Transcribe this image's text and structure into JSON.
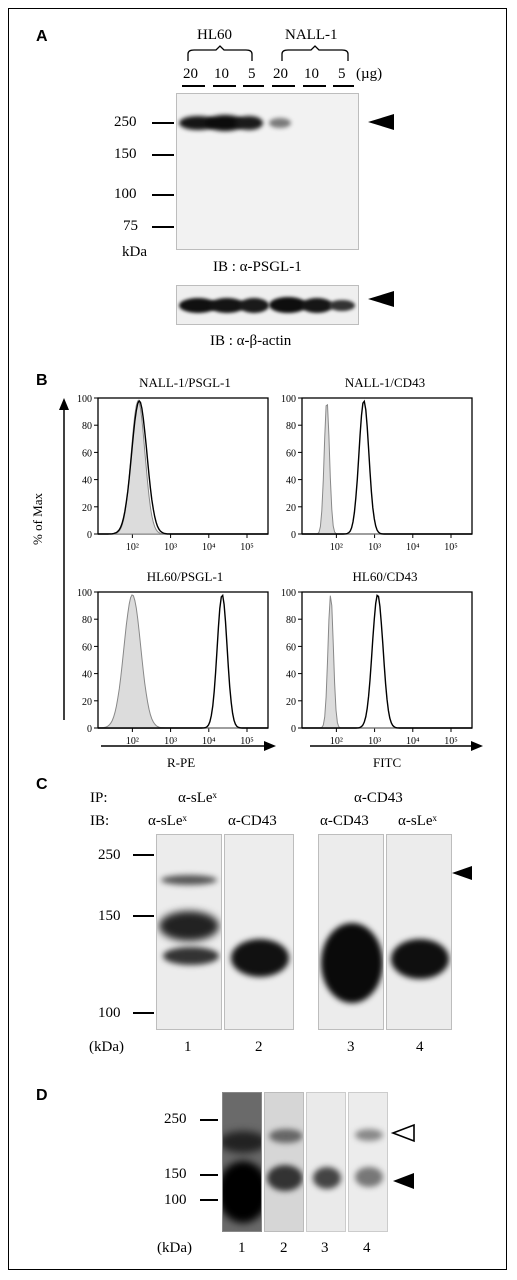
{
  "panels": {
    "A": {
      "label": "A",
      "group_left": "HL60",
      "group_right": "NALL-1",
      "lanes": [
        "20",
        "10",
        "5",
        "20",
        "10",
        "5"
      ],
      "unit": "(µg)",
      "markers": [
        "250",
        "150",
        "100",
        "75"
      ],
      "kda": "kDa",
      "ib_top": "IB : α-PSGL-1",
      "ib_bottom": "IB : α-β-actin"
    },
    "B": {
      "label": "B",
      "y_axis": "% of Max",
      "x_axis_left": "R-PE",
      "x_axis_right": "FITC",
      "titles": [
        "NALL-1/PSGL-1",
        "NALL-1/CD43",
        "HL60/PSGL-1",
        "HL60/CD43"
      ],
      "y_ticks": [
        "100",
        "80",
        "60",
        "40",
        "20",
        "0"
      ],
      "x_ticks": [
        "10²",
        "10³",
        "10⁴",
        "10⁵"
      ]
    },
    "C": {
      "label": "C",
      "ip_label": "IP:",
      "ib_label": "IB:",
      "ip_left": "α-sLeˣ",
      "ip_right": "α-CD43",
      "ib_1": "α-sLeˣ",
      "ib_2": "α-CD43",
      "ib_3": "α-CD43",
      "ib_4": "α-sLeˣ",
      "markers": [
        "250",
        "150",
        "100"
      ],
      "kda": "(kDa)",
      "lanes": [
        "1",
        "2",
        "3",
        "4"
      ]
    },
    "D": {
      "label": "D",
      "markers": [
        "250",
        "150",
        "100"
      ],
      "kda": "(kDa)",
      "lanes": [
        "1",
        "2",
        "3",
        "4"
      ]
    }
  }
}
